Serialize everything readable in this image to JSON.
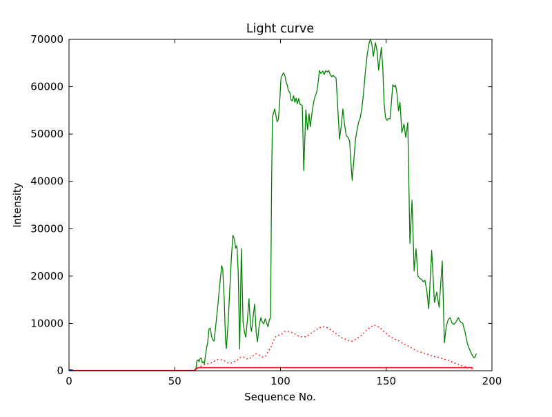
{
  "figure": {
    "background": "#ffffff",
    "frame_color": "#000000"
  },
  "chart_data": {
    "type": "line",
    "title": "Light curve",
    "xlabel": "Sequence No.",
    "ylabel": "Intensity",
    "xlim": [
      0,
      200
    ],
    "ylim": [
      0,
      70000
    ],
    "grid": false,
    "legend": null,
    "x_ticks": {
      "values": [
        0,
        50,
        100,
        150,
        200
      ],
      "labels": [
        "0",
        "50",
        "100",
        "150",
        "200"
      ]
    },
    "y_ticks": {
      "values": [
        0,
        10000,
        20000,
        30000,
        40000,
        50000,
        60000,
        70000
      ],
      "labels": [
        "0",
        "10000",
        "20000",
        "30000",
        "40000",
        "50000",
        "60000",
        "70000"
      ]
    },
    "series": [
      {
        "name": "main-light-curve",
        "color": "#008000",
        "style": "solid",
        "width": 1.3,
        "points": [
          [
            0,
            30
          ],
          [
            59,
            30
          ],
          [
            60,
            400
          ],
          [
            60.5,
            2100
          ],
          [
            61,
            2300
          ],
          [
            61.5,
            1900
          ],
          [
            62,
            2600
          ],
          [
            62.5,
            2700
          ],
          [
            63,
            1700
          ],
          [
            63.5,
            1900
          ],
          [
            64,
            1500
          ],
          [
            65,
            4700
          ],
          [
            65.6,
            6000
          ],
          [
            66.2,
            8800
          ],
          [
            66.8,
            9000
          ],
          [
            67.4,
            7300
          ],
          [
            68,
            6500
          ],
          [
            68.6,
            6300
          ],
          [
            69.4,
            9500
          ],
          [
            70.2,
            13000
          ],
          [
            71.2,
            17800
          ],
          [
            72.2,
            22200
          ],
          [
            72.7,
            21400
          ],
          [
            73.4,
            15000
          ],
          [
            74,
            6500
          ],
          [
            74.4,
            4700
          ],
          [
            75.2,
            9800
          ],
          [
            76,
            17000
          ],
          [
            76.8,
            24000
          ],
          [
            77.5,
            28600
          ],
          [
            78.2,
            27800
          ],
          [
            78.8,
            25900
          ],
          [
            79.4,
            26400
          ],
          [
            80,
            21000
          ],
          [
            80.7,
            4600
          ],
          [
            81.5,
            25800
          ],
          [
            82.3,
            10200
          ],
          [
            83,
            8100
          ],
          [
            83.6,
            7100
          ],
          [
            84.4,
            11000
          ],
          [
            85.1,
            15200
          ],
          [
            85.8,
            9600
          ],
          [
            86.3,
            8300
          ],
          [
            87.1,
            11600
          ],
          [
            87.8,
            14100
          ],
          [
            88.5,
            8100
          ],
          [
            89.1,
            6100
          ],
          [
            90,
            9800
          ],
          [
            90.7,
            11200
          ],
          [
            91.4,
            10300
          ],
          [
            92.1,
            9900
          ],
          [
            92.8,
            11000
          ],
          [
            93.4,
            10200
          ],
          [
            94.1,
            9300
          ],
          [
            94.8,
            10900
          ],
          [
            95.3,
            11100
          ],
          [
            95.8,
            40000
          ],
          [
            96.2,
            53600
          ],
          [
            96.8,
            54600
          ],
          [
            97.3,
            55300
          ],
          [
            97.9,
            53800
          ],
          [
            98.4,
            52600
          ],
          [
            99,
            53100
          ],
          [
            99.6,
            56500
          ],
          [
            100.2,
            61600
          ],
          [
            100.8,
            62400
          ],
          [
            101.4,
            62900
          ],
          [
            102,
            62500
          ],
          [
            102.6,
            61100
          ],
          [
            103.2,
            60300
          ],
          [
            103.8,
            59100
          ],
          [
            104.4,
            58800
          ],
          [
            105,
            57200
          ],
          [
            105.6,
            57000
          ],
          [
            106.2,
            58100
          ],
          [
            106.8,
            56700
          ],
          [
            107.4,
            57600
          ],
          [
            108,
            56400
          ],
          [
            108.6,
            57500
          ],
          [
            109.3,
            56300
          ],
          [
            110.3,
            56000
          ],
          [
            111,
            42300
          ],
          [
            112,
            55100
          ],
          [
            112.8,
            50900
          ],
          [
            113.5,
            54300
          ],
          [
            114.1,
            51500
          ],
          [
            114.9,
            54500
          ],
          [
            115.6,
            56500
          ],
          [
            116.3,
            57900
          ],
          [
            117.1,
            58800
          ],
          [
            117.7,
            60500
          ],
          [
            118.4,
            63400
          ],
          [
            119.1,
            62800
          ],
          [
            120,
            63300
          ],
          [
            120.7,
            62600
          ],
          [
            121.4,
            63400
          ],
          [
            122.1,
            63100
          ],
          [
            122.8,
            63400
          ],
          [
            123.5,
            62600
          ],
          [
            124.2,
            62100
          ],
          [
            124.9,
            62400
          ],
          [
            125.6,
            62100
          ],
          [
            126.3,
            61800
          ],
          [
            127.1,
            55500
          ],
          [
            127.9,
            48900
          ],
          [
            128.7,
            51600
          ],
          [
            129.5,
            55300
          ],
          [
            130.3,
            52000
          ],
          [
            131.1,
            49700
          ],
          [
            131.9,
            49300
          ],
          [
            132.7,
            48500
          ],
          [
            133.3,
            44000
          ],
          [
            133.9,
            40200
          ],
          [
            134.7,
            44600
          ],
          [
            135.5,
            49000
          ],
          [
            136.3,
            51100
          ],
          [
            137,
            52600
          ],
          [
            137.7,
            53400
          ],
          [
            138.4,
            55200
          ],
          [
            139.2,
            58300
          ],
          [
            140,
            62500
          ],
          [
            141,
            66800
          ],
          [
            142,
            69400
          ],
          [
            142.6,
            70000
          ],
          [
            143.3,
            68700
          ],
          [
            143.9,
            66400
          ],
          [
            144.9,
            69300
          ],
          [
            145.7,
            67400
          ],
          [
            146.4,
            63500
          ],
          [
            147,
            65600
          ],
          [
            147.7,
            68300
          ],
          [
            148.4,
            63800
          ],
          [
            149,
            56500
          ],
          [
            149.7,
            53400
          ],
          [
            150.4,
            52900
          ],
          [
            151.1,
            53300
          ],
          [
            151.8,
            53200
          ],
          [
            152.5,
            57000
          ],
          [
            153.1,
            60400
          ],
          [
            153.8,
            60000
          ],
          [
            154.4,
            60300
          ],
          [
            155.1,
            58500
          ],
          [
            155.8,
            54900
          ],
          [
            156.5,
            56700
          ],
          [
            157.4,
            50300
          ],
          [
            158.4,
            52100
          ],
          [
            159.2,
            49300
          ],
          [
            160.2,
            52400
          ],
          [
            161.2,
            26900
          ],
          [
            162.2,
            36000
          ],
          [
            163.2,
            21100
          ],
          [
            164.1,
            25800
          ],
          [
            165,
            20000
          ],
          [
            165.9,
            19500
          ],
          [
            166.7,
            19300
          ],
          [
            167.5,
            18800
          ],
          [
            168.3,
            19100
          ],
          [
            169.1,
            17100
          ],
          [
            170.1,
            13100
          ],
          [
            171.5,
            25400
          ],
          [
            172.8,
            14400
          ],
          [
            173.9,
            16600
          ],
          [
            175,
            13400
          ],
          [
            176.5,
            23200
          ],
          [
            177.5,
            5900
          ],
          [
            178.4,
            9400
          ],
          [
            179.3,
            10800
          ],
          [
            180.2,
            11200
          ],
          [
            181.1,
            10100
          ],
          [
            182.1,
            9800
          ],
          [
            183.1,
            10400
          ],
          [
            184.1,
            11200
          ],
          [
            185.1,
            10300
          ],
          [
            186.2,
            10000
          ],
          [
            187.3,
            8100
          ],
          [
            188.4,
            5700
          ],
          [
            189.4,
            4500
          ],
          [
            190.4,
            3500
          ],
          [
            191.4,
            2750
          ],
          [
            192,
            2900
          ],
          [
            192.6,
            3650
          ]
        ]
      },
      {
        "name": "secondary-light-curve",
        "color": "#ff0000",
        "style": "dotted",
        "width": 1.4,
        "points": [
          [
            0,
            40
          ],
          [
            59,
            40
          ],
          [
            60,
            300
          ],
          [
            61.5,
            700
          ],
          [
            63,
            1100
          ],
          [
            64.5,
            1400
          ],
          [
            66,
            1500
          ],
          [
            67.5,
            1700
          ],
          [
            69,
            2100
          ],
          [
            70.5,
            2400
          ],
          [
            72,
            2300
          ],
          [
            73.5,
            2100
          ],
          [
            75,
            1700
          ],
          [
            76.5,
            1600
          ],
          [
            78,
            1900
          ],
          [
            79.5,
            2200
          ],
          [
            81,
            2800
          ],
          [
            82.5,
            2900
          ],
          [
            84,
            2500
          ],
          [
            85.5,
            2600
          ],
          [
            87,
            3100
          ],
          [
            88.5,
            3600
          ],
          [
            90,
            3300
          ],
          [
            91.5,
            2900
          ],
          [
            93,
            3100
          ],
          [
            94.5,
            4300
          ],
          [
            95.5,
            5000
          ],
          [
            96.5,
            6100
          ],
          [
            97.5,
            7100
          ],
          [
            99,
            7500
          ],
          [
            100.5,
            7700
          ],
          [
            102,
            8300
          ],
          [
            103.5,
            8300
          ],
          [
            105,
            8100
          ],
          [
            106.5,
            7900
          ],
          [
            108,
            7400
          ],
          [
            109.5,
            7200
          ],
          [
            111,
            7100
          ],
          [
            112.5,
            7300
          ],
          [
            114,
            7800
          ],
          [
            115.5,
            8200
          ],
          [
            117,
            8700
          ],
          [
            118.5,
            9100
          ],
          [
            120,
            9300
          ],
          [
            121.5,
            9200
          ],
          [
            123,
            8900
          ],
          [
            124.5,
            8400
          ],
          [
            126,
            7900
          ],
          [
            127.5,
            7400
          ],
          [
            129,
            7000
          ],
          [
            130.5,
            6700
          ],
          [
            132,
            6400
          ],
          [
            133.5,
            6200
          ],
          [
            135,
            6500
          ],
          [
            136.5,
            6900
          ],
          [
            138,
            7400
          ],
          [
            139.5,
            8000
          ],
          [
            141,
            8700
          ],
          [
            142.5,
            9200
          ],
          [
            144,
            9700
          ],
          [
            145.5,
            9500
          ],
          [
            147,
            9100
          ],
          [
            148.5,
            8400
          ],
          [
            150,
            7900
          ],
          [
            151.5,
            7300
          ],
          [
            153,
            6900
          ],
          [
            154.5,
            6600
          ],
          [
            156,
            6300
          ],
          [
            157.5,
            5900
          ],
          [
            159,
            5500
          ],
          [
            160.5,
            5200
          ],
          [
            162,
            4800
          ],
          [
            163.5,
            4400
          ],
          [
            165,
            4100
          ],
          [
            166.5,
            3900
          ],
          [
            168,
            3700
          ],
          [
            169.5,
            3500
          ],
          [
            171,
            3200
          ],
          [
            172.5,
            3000
          ],
          [
            174,
            2900
          ],
          [
            175.5,
            2700
          ],
          [
            177,
            2500
          ],
          [
            178.5,
            2300
          ],
          [
            180,
            2100
          ],
          [
            181.5,
            1800
          ],
          [
            183,
            1500
          ],
          [
            184.5,
            1300
          ],
          [
            186,
            1000
          ],
          [
            187.5,
            800
          ],
          [
            189,
            600
          ],
          [
            190.5,
            450
          ],
          [
            192,
            350
          ]
        ]
      },
      {
        "name": "baseline-curve",
        "color": "#ff0000",
        "style": "solid",
        "width": 1.5,
        "points": [
          [
            0,
            60
          ],
          [
            59.5,
            60
          ],
          [
            60,
            300
          ],
          [
            60.6,
            600
          ],
          [
            61,
            650
          ],
          [
            190.8,
            650
          ]
        ]
      },
      {
        "name": "start-marker-curve",
        "color": "#0000ff",
        "style": "solid",
        "width": 2,
        "points": [
          [
            0,
            130
          ],
          [
            1.8,
            130
          ]
        ]
      }
    ]
  }
}
